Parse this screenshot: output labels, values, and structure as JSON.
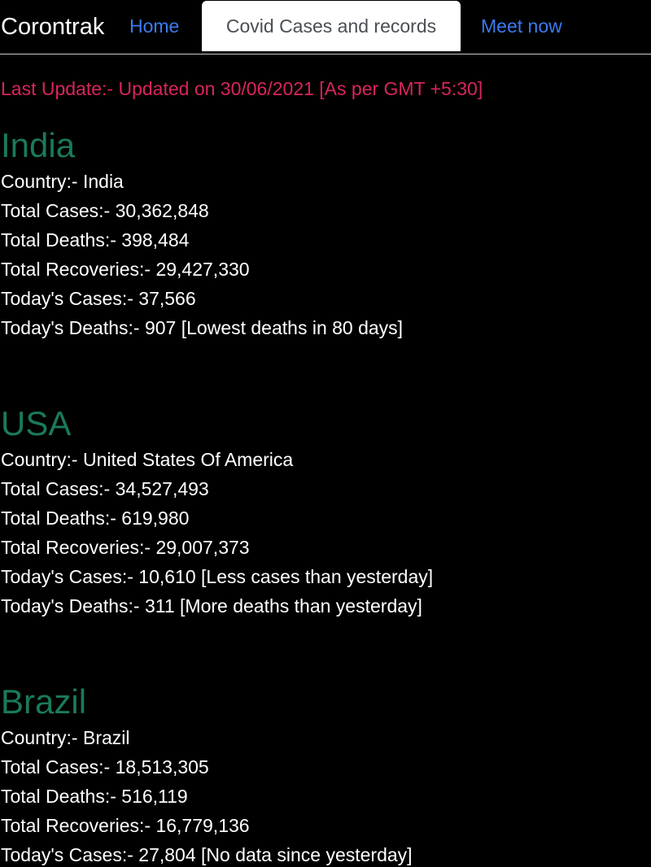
{
  "nav": {
    "brand": "Corontrak",
    "home": "Home",
    "active_tab": "Covid Cases and records",
    "meet": "Meet now"
  },
  "last_update": "Last Update:- Updated on 30/06/2021 [As per GMT +5:30]",
  "colors": {
    "background": "#000000",
    "link": "#3a7bf0",
    "heading": "#1a7a5a",
    "update": "#d8265a"
  },
  "countries": [
    {
      "heading": "India",
      "lines": [
        "Country:- India",
        "Total Cases:- 30,362,848",
        "Total Deaths:- 398,484",
        "Total Recoveries:- 29,427,330",
        "Today's Cases:- 37,566",
        "Today's Deaths:- 907 [Lowest deaths in 80 days]"
      ]
    },
    {
      "heading": "USA",
      "lines": [
        "Country:- United States Of America",
        "Total Cases:- 34,527,493",
        "Total Deaths:- 619,980",
        "Total Recoveries:- 29,007,373",
        "Today's Cases:- 10,610 [Less cases than yesterday]",
        "Today's Deaths:- 311 [More deaths than yesterday]"
      ]
    },
    {
      "heading": "Brazil",
      "lines": [
        "Country:- Brazil",
        "Total Cases:- 18,513,305",
        "Total Deaths:- 516,119",
        "Total Recoveries:- 16,779,136",
        "Today's Cases:- 27,804 [No data since yesterday]"
      ]
    }
  ]
}
